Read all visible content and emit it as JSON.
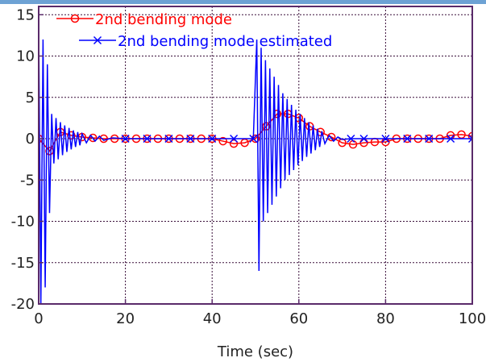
{
  "chart_data": {
    "type": "line",
    "title": "",
    "xlabel": "Time (sec)",
    "ylabel": "",
    "xlim": [
      0,
      100
    ],
    "ylim": [
      -20,
      16
    ],
    "xticks": [
      0,
      20,
      40,
      60,
      80,
      100
    ],
    "yticks": [
      15,
      10,
      5,
      0,
      -5,
      -10,
      -15,
      -20
    ],
    "grid": true,
    "legend_position": "top-left",
    "colors": {
      "axes": "#5a2a6a",
      "grid": "#3a0f3a",
      "series1": "#ff0000",
      "series2": "#0000ff"
    },
    "series": [
      {
        "name": "2nd bending mode",
        "marker": "o",
        "x": [
          0,
          2.5,
          5,
          7.5,
          10,
          12.5,
          15,
          17.5,
          20,
          22.5,
          25,
          27.5,
          30,
          32.5,
          35,
          37.5,
          40,
          42.5,
          45,
          47.5,
          50,
          52.5,
          55,
          57.5,
          60,
          62.5,
          65,
          67.5,
          70,
          72.5,
          75,
          77.5,
          80,
          82.5,
          85,
          87.5,
          90,
          92.5,
          95,
          97.5,
          100
        ],
        "y": [
          0,
          -1.5,
          0.8,
          0.4,
          0.2,
          0.1,
          0,
          0,
          0,
          0,
          0,
          0,
          0,
          0,
          0,
          0,
          0,
          -0.3,
          -0.6,
          -0.5,
          0,
          1.5,
          3,
          3,
          2.5,
          1.5,
          0.8,
          0.2,
          -0.5,
          -0.7,
          -0.5,
          -0.4,
          -0.4,
          0,
          0,
          0,
          0,
          0,
          0.4,
          0.5,
          0.3
        ]
      },
      {
        "name": "2nd bending mode estimated",
        "marker": "x",
        "x": [
          0,
          0.5,
          1,
          1.5,
          2,
          2.5,
          3,
          3.5,
          4,
          4.5,
          5,
          5.5,
          6,
          6.5,
          7,
          7.5,
          8,
          8.5,
          9,
          9.5,
          10,
          11,
          12,
          13,
          14,
          15,
          17,
          20,
          25,
          30,
          35,
          40,
          45,
          49.5,
          50.3,
          50.8,
          51.3,
          51.8,
          52.3,
          52.8,
          53.3,
          53.8,
          54.3,
          54.8,
          55.3,
          55.8,
          56.3,
          56.8,
          57.3,
          57.8,
          58.3,
          58.8,
          59.3,
          59.8,
          60.3,
          60.8,
          61.3,
          61.8,
          62.3,
          62.8,
          63.3,
          63.8,
          64.3,
          64.8,
          65.3,
          66,
          67,
          68,
          69,
          70,
          72,
          75,
          80,
          85,
          90,
          95,
          100
        ],
        "y": [
          14,
          -20,
          12,
          -18,
          9,
          -9,
          3,
          -3,
          2.5,
          -2.5,
          2,
          -2,
          1.6,
          -1.6,
          1.3,
          -1.3,
          1,
          -1,
          0.8,
          -0.8,
          0.6,
          -0.5,
          0.4,
          -0.3,
          0.3,
          -0.2,
          0.1,
          0,
          0,
          0,
          0,
          0,
          0,
          0,
          12,
          -16,
          11,
          -10,
          9.5,
          -9,
          8.5,
          -8,
          7.5,
          -7,
          6.5,
          -6,
          5.5,
          -5,
          4.8,
          -4.4,
          4.1,
          -3.8,
          3.5,
          -3.2,
          3,
          -2.7,
          2.5,
          -2.2,
          2,
          -1.8,
          1.6,
          -1.4,
          1.2,
          -1,
          0.9,
          -0.6,
          0.4,
          -0.3,
          0.2,
          -0.1,
          0,
          0,
          0,
          0,
          0,
          0,
          0
        ]
      }
    ]
  }
}
